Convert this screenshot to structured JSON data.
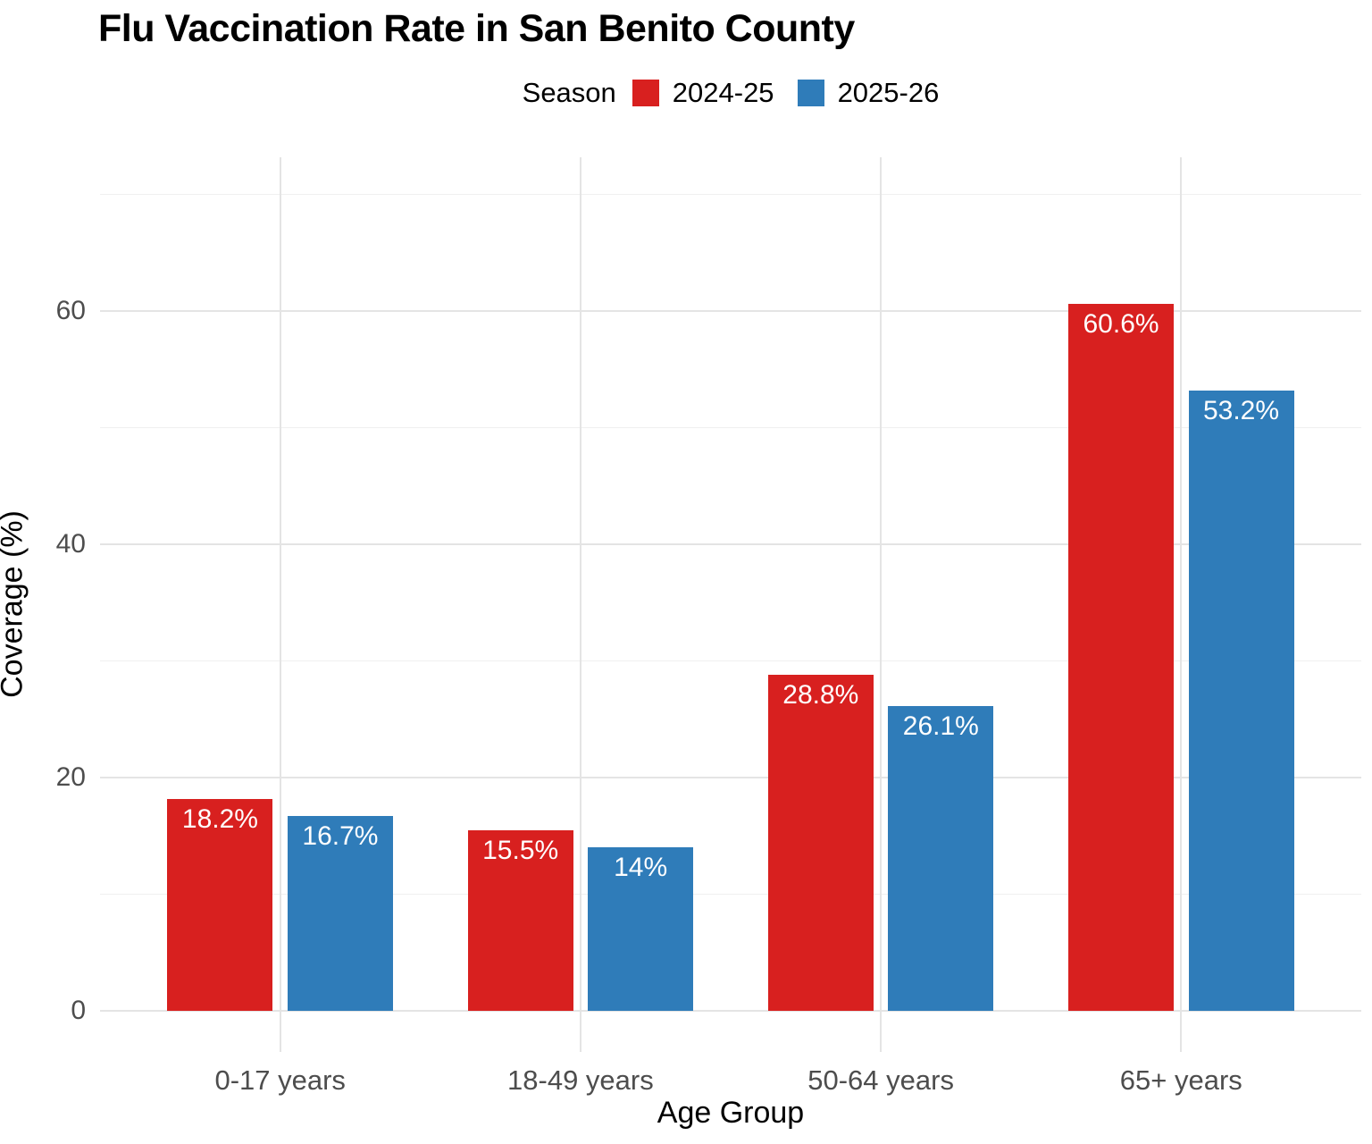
{
  "chart_data": {
    "type": "bar",
    "title": "Flu Vaccination Rate in San Benito County",
    "legend_title": "Season",
    "legend_position": "top",
    "xlabel": "Age Group",
    "ylabel": "Coverage (%)",
    "categories": [
      "0-17 years",
      "18-49 years",
      "50-64 years",
      "65+ years"
    ],
    "series": [
      {
        "name": "2024-25",
        "color": "#D8201F",
        "values": [
          18.2,
          15.5,
          28.8,
          60.6
        ],
        "labels": [
          "18.2%",
          "15.5%",
          "28.8%",
          "60.6%"
        ]
      },
      {
        "name": "2025-26",
        "color": "#2F7CB9",
        "values": [
          16.7,
          14.0,
          26.1,
          53.2
        ],
        "labels": [
          "16.7%",
          "14%",
          "26.1%",
          "53.2%"
        ]
      }
    ],
    "yticks": {
      "values": [
        0,
        20,
        40,
        60
      ],
      "labels": [
        "0",
        "20",
        "40",
        "60"
      ]
    },
    "yminor": [
      10,
      30,
      50,
      70
    ],
    "ylim": [
      -3.52,
      73.18
    ],
    "grid": true,
    "colors": {
      "tick_label": "#4D4D4D",
      "grid_major": "#E4E4E4",
      "grid_minor": "#F0F0F0",
      "background": "#FFFFFF"
    }
  }
}
